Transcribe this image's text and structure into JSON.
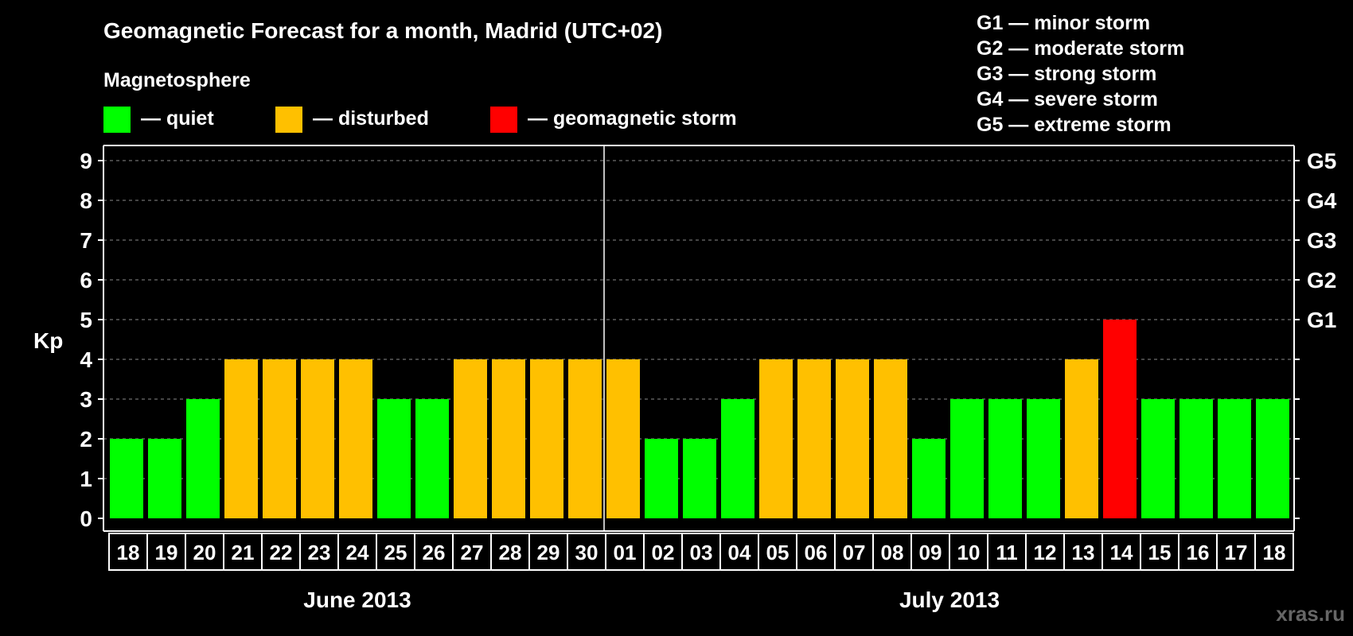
{
  "chart_data": {
    "type": "bar",
    "title": "Geomagnetic Forecast for a month, Madrid (UTC+02)",
    "ylabel": "Kp",
    "ylim": [
      0,
      9
    ],
    "yticks": [
      "0",
      "1",
      "2",
      "3",
      "4",
      "5",
      "6",
      "7",
      "8",
      "9"
    ],
    "right_axis": [
      {
        "kp": 5,
        "label": "G1"
      },
      {
        "kp": 6,
        "label": "G2"
      },
      {
        "kp": 7,
        "label": "G3"
      },
      {
        "kp": 8,
        "label": "G4"
      },
      {
        "kp": 9,
        "label": "G5"
      }
    ],
    "grid": "dashed horizontal",
    "legend_title": "Magnetosphere",
    "legend": [
      {
        "label": "— quiet",
        "color": "#00ff00"
      },
      {
        "label": "— disturbed",
        "color": "#ffc000"
      },
      {
        "label": "— geomagnetic storm",
        "color": "#ff0000"
      }
    ],
    "storm_scale": [
      "G1 — minor storm",
      "G2 — moderate storm",
      "G3 — strong storm",
      "G4 — severe storm",
      "G5 — extreme storm"
    ],
    "months": [
      {
        "label": "June 2013",
        "days": [
          "18",
          "19",
          "20",
          "21",
          "22",
          "23",
          "24",
          "25",
          "26",
          "27",
          "28",
          "29",
          "30"
        ]
      },
      {
        "label": "July 2013",
        "days": [
          "01",
          "02",
          "03",
          "04",
          "05",
          "06",
          "07",
          "08",
          "09",
          "10",
          "11",
          "12",
          "13",
          "14",
          "15",
          "16",
          "17",
          "18"
        ]
      }
    ],
    "values": [
      2,
      2,
      3,
      4,
      4,
      4,
      4,
      3,
      3,
      4,
      4,
      4,
      4,
      4,
      2,
      2,
      3,
      4,
      4,
      4,
      4,
      2,
      3,
      3,
      3,
      4,
      5,
      3,
      3,
      3,
      3
    ],
    "status": [
      "quiet",
      "quiet",
      "quiet",
      "disturbed",
      "disturbed",
      "disturbed",
      "disturbed",
      "quiet",
      "quiet",
      "disturbed",
      "disturbed",
      "disturbed",
      "disturbed",
      "disturbed",
      "quiet",
      "quiet",
      "quiet",
      "disturbed",
      "disturbed",
      "disturbed",
      "disturbed",
      "quiet",
      "quiet",
      "quiet",
      "quiet",
      "disturbed",
      "storm",
      "quiet",
      "quiet",
      "quiet",
      "quiet"
    ],
    "colors": {
      "quiet": "#00ff00",
      "disturbed": "#ffc000",
      "storm": "#ff0000"
    }
  },
  "watermark": "xras.ru"
}
